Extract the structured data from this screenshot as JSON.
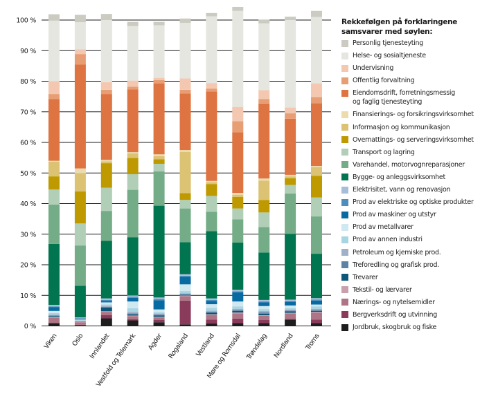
{
  "chart_data": {
    "type": "bar",
    "stacked": true,
    "title": "",
    "xlabel": "",
    "ylabel": "",
    "ylim": [
      0,
      100
    ],
    "yticks": [
      "0 %",
      "10 %",
      "20 %",
      "30 %",
      "40 %",
      "50 %",
      "60 %",
      "70 %",
      "80 %",
      "90 %",
      "100 %"
    ],
    "grid": true,
    "legend_position": "right",
    "legend_title": "Rekkefølgen på forklaringene samsvarer med søylen:",
    "categories": [
      "Viken",
      "Oslo",
      "Innlandet",
      "Vestfold og Telemark",
      "Agder",
      "Rogaland",
      "Vestland",
      "Møre og Romsdal",
      "Trøndelag",
      "Nordland",
      "Troms"
    ],
    "series": [
      {
        "name": "Jordbruk, skogbruk og fiske",
        "color": "#1e1e1e",
        "values": [
          0.8,
          0.2,
          2.5,
          1.8,
          1.2,
          0.5,
          0.8,
          0.9,
          0.9,
          2.0,
          0.9
        ]
      },
      {
        "name": "Bergverksdrift og utvinning",
        "color": "#8a3a5a",
        "values": [
          0.3,
          0.2,
          1.0,
          0.4,
          0.8,
          7.8,
          1.3,
          1.5,
          1.1,
          0.4,
          1.2
        ]
      },
      {
        "name": "Nærings- og nytelsemidler",
        "color": "#ad7585",
        "values": [
          1.5,
          0.8,
          1.1,
          1.0,
          0.8,
          1.4,
          1.4,
          1.7,
          1.3,
          1.7,
          2.2
        ]
      },
      {
        "name": "Tekstil- og lærvarer",
        "color": "#c9a1ad",
        "values": [
          0.3,
          0.1,
          0.2,
          0.2,
          0.2,
          0.3,
          0.3,
          0.3,
          0.2,
          0.2,
          0.3
        ]
      },
      {
        "name": "Trevarer",
        "color": "#0d5678",
        "values": [
          0.3,
          0.1,
          1.2,
          0.4,
          0.4,
          0.2,
          0.5,
          0.5,
          0.5,
          0.5,
          0.3
        ]
      },
      {
        "name": "Treforedling og grafisk prod.",
        "color": "#5e82a3",
        "values": [
          0.2,
          0.1,
          0.2,
          0.3,
          0.3,
          0.2,
          0.3,
          0.3,
          0.4,
          0.2,
          0.3
        ]
      },
      {
        "name": "Petroleum og kjemiske prod.",
        "color": "#a1b0c9",
        "values": [
          0.3,
          0.1,
          0.4,
          0.5,
          0.4,
          0.3,
          0.4,
          0.4,
          0.5,
          0.3,
          0.4
        ]
      },
      {
        "name": "Prod av annen industri",
        "color": "#a8d5e2",
        "values": [
          0.5,
          0.3,
          0.4,
          1.2,
          0.4,
          0.7,
          0.9,
          0.8,
          0.6,
          0.5,
          0.8
        ]
      },
      {
        "name": "Prod av metallvarer",
        "color": "#d0e8f0",
        "values": [
          0.7,
          0.2,
          0.7,
          2.2,
          0.9,
          2.2,
          1.2,
          1.6,
          1.0,
          0.9,
          0.6
        ]
      },
      {
        "name": "Prod av maskiner og utstyr",
        "color": "#076aa0",
        "values": [
          1.2,
          0.3,
          0.5,
          1.2,
          3.0,
          2.5,
          1.1,
          3.0,
          1.2,
          1.2,
          1.3
        ]
      },
      {
        "name": "Prod av elektriske og optiske produkter",
        "color": "#4e8ebf",
        "values": [
          0.3,
          0.1,
          0.3,
          0.3,
          0.4,
          0.3,
          0.3,
          0.3,
          0.3,
          0.2,
          0.3
        ]
      },
      {
        "name": "Elektrisitet, vann og renovasjon",
        "color": "#a7bedb",
        "values": [
          0.5,
          0.3,
          0.5,
          0.5,
          0.5,
          0.5,
          0.5,
          0.5,
          0.5,
          0.5,
          0.5
        ]
      },
      {
        "name": "Bygge- og anleggsvirksomhet",
        "color": "#007550",
        "values": [
          19.9,
          10.3,
          18.8,
          19.0,
          30.0,
          10.5,
          22.0,
          15.5,
          15.5,
          21.5,
          14.5
        ]
      },
      {
        "name": "Varehandel, motorvognreparasjoner",
        "color": "#73ac87",
        "values": [
          12.9,
          13.2,
          9.8,
          15.5,
          11.2,
          11.0,
          6.3,
          7.5,
          8.3,
          13.2,
          12.2
        ]
      },
      {
        "name": "Transport og lagring",
        "color": "#b1cfb6",
        "values": [
          4.9,
          7.2,
          7.6,
          5.1,
          2.5,
          2.8,
          5.2,
          3.6,
          4.8,
          2.8,
          6.2
        ]
      },
      {
        "name": "Overnattings- og serveringsvirksomhet",
        "color": "#be9a00",
        "values": [
          4.3,
          10.5,
          8.0,
          5.3,
          1.5,
          2.2,
          3.9,
          3.8,
          4.1,
          2.2,
          7.1
        ]
      },
      {
        "name": "Informasjon og kommunikasjon",
        "color": "#dcc273",
        "values": [
          4.8,
          5.9,
          0.6,
          1.5,
          1.0,
          13.5,
          0.6,
          0.7,
          6.3,
          0.6,
          2.8
        ]
      },
      {
        "name": "Finansierings- og forsikringsvirksomhet",
        "color": "#ecdbad",
        "values": [
          0.3,
          1.6,
          0.5,
          0.4,
          0.6,
          0.6,
          0.4,
          0.6,
          0.7,
          0.5,
          0.4
        ]
      },
      {
        "name": "Eiendomsdrift, forretningsmessig og faglig tjenesteyting",
        "color": "#de7441",
        "values": [
          20.2,
          34.0,
          21.5,
          20.5,
          23.2,
          18.5,
          29.2,
          19.8,
          24.5,
          18.3,
          20.5
        ]
      },
      {
        "name": "Offentlig forvaltning",
        "color": "#e89e74",
        "values": [
          1.6,
          3.4,
          1.4,
          0.9,
          1.1,
          1.2,
          1.0,
          3.6,
          1.5,
          1.8,
          2.0
        ]
      },
      {
        "name": "Undervisning",
        "color": "#f4c8b0",
        "values": [
          4.1,
          1.5,
          2.5,
          2.0,
          0.7,
          3.7,
          1.8,
          4.7,
          2.9,
          1.9,
          4.5
        ]
      },
      {
        "name": "Helse- og sosialtjeneste",
        "color": "#e6e6e0",
        "values": [
          20.0,
          8.9,
          20.3,
          17.8,
          17.2,
          18.2,
          21.8,
          31.4,
          21.8,
          28.6,
          21.7
        ]
      },
      {
        "name": "Personlig tjenesteyting",
        "color": "#cccbc1",
        "values": [
          2.0,
          2.4,
          2.0,
          1.4,
          1.1,
          1.4,
          1.1,
          1.3,
          1.2,
          1.1,
          2.0
        ]
      }
    ]
  }
}
